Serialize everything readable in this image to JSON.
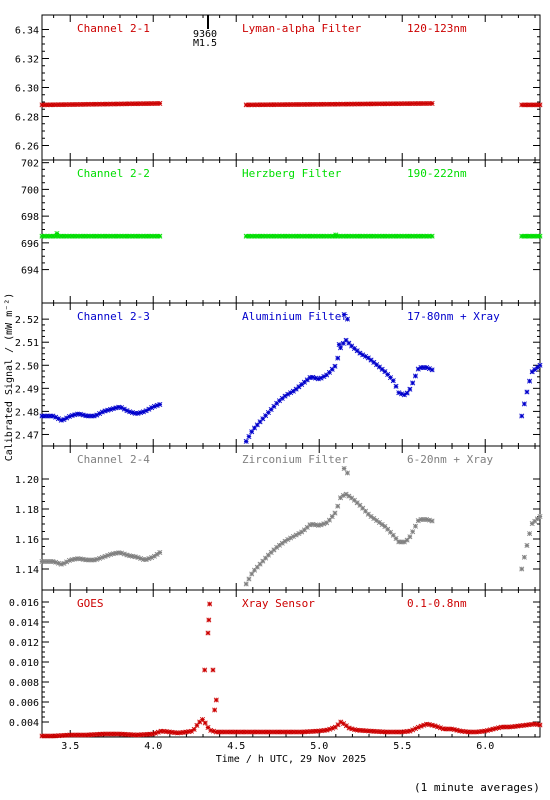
{
  "x_axis": {
    "label": "Time / h UTC, 29 Nov 2025",
    "range": [
      3.33,
      6.33
    ],
    "ticks": [
      3.5,
      4.0,
      4.5,
      5.0,
      5.5,
      6.0
    ],
    "tick_labels": [
      "3.5",
      "4.0",
      "4.5",
      "5.0",
      "5.5",
      "6.0"
    ]
  },
  "y_label": "Calibrated Signal / (mW m⁻²)",
  "footer_note": "(1 minute averages)",
  "flare_marker": {
    "x": 4.33,
    "label_1": "9360",
    "label_2": "M1.5"
  },
  "chart_data": [
    {
      "type": "scatter",
      "channel": "Channel 2-1",
      "filter": "Lyman-alpha Filter",
      "band": "120-123nm",
      "color": "#cc0000",
      "ylim": [
        6.25,
        6.35
      ],
      "ticks": [
        6.26,
        6.28,
        6.3,
        6.32,
        6.34
      ],
      "tick_labels": [
        "6.26",
        "6.28",
        "6.30",
        "6.32",
        "6.34"
      ],
      "series": [
        {
          "x": [
            3.33,
            4.04
          ],
          "y": [
            6.288,
            6.289
          ]
        },
        {
          "x": [
            4.56,
            5.68
          ],
          "y": [
            6.288,
            6.289
          ]
        },
        {
          "x": [
            6.22,
            6.33
          ],
          "y": [
            6.288,
            6.288
          ]
        }
      ]
    },
    {
      "type": "scatter",
      "channel": "Channel 2-2",
      "filter": "Herzberg Filter",
      "band": "190-222nm",
      "color": "#00dd00",
      "ylim": [
        691.5,
        702.2
      ],
      "ticks": [
        694,
        696,
        698,
        700,
        702
      ],
      "tick_labels": [
        "694",
        "696",
        "698",
        "700",
        "702"
      ],
      "series": [
        {
          "x": [
            3.33,
            4.04
          ],
          "y": [
            696.5,
            696.5
          ],
          "bumps": [
            [
              3.42,
              696.7
            ]
          ]
        },
        {
          "x": [
            4.56,
            5.68
          ],
          "y": [
            696.5,
            696.5
          ],
          "bumps": [
            [
              5.1,
              696.6
            ]
          ]
        },
        {
          "x": [
            6.22,
            6.33
          ],
          "y": [
            696.5,
            696.5
          ]
        }
      ]
    },
    {
      "type": "scatter",
      "channel": "Channel 2-3",
      "filter": "Aluminium Filter",
      "band": "17-80nm + Xray",
      "color": "#0000cc",
      "ylim": [
        2.465,
        2.527
      ],
      "ticks": [
        2.47,
        2.48,
        2.49,
        2.5,
        2.51,
        2.52
      ],
      "tick_labels": [
        "2.47",
        "2.48",
        "2.49",
        "2.50",
        "2.51",
        "2.52"
      ],
      "series": [
        {
          "x": [
            3.33,
            3.4,
            3.45,
            3.5,
            3.55,
            3.6,
            3.65,
            3.7,
            3.75,
            3.8,
            3.85,
            3.9,
            3.95,
            4.0,
            4.04
          ],
          "y": [
            2.478,
            2.478,
            2.476,
            2.478,
            2.479,
            2.478,
            2.478,
            2.48,
            2.481,
            2.482,
            2.48,
            2.479,
            2.48,
            2.482,
            2.483
          ]
        },
        {
          "x": [
            4.56,
            4.6,
            4.65,
            4.7,
            4.75,
            4.8,
            4.85,
            4.9,
            4.95,
            5.0,
            5.05,
            5.1,
            5.13,
            5.16,
            5.2,
            5.25,
            5.3,
            5.35,
            5.4,
            5.45,
            5.48,
            5.52,
            5.55,
            5.6,
            5.65,
            5.68
          ],
          "y": [
            2.467,
            2.472,
            2.476,
            2.48,
            2.484,
            2.487,
            2.489,
            2.492,
            2.495,
            2.494,
            2.496,
            2.5,
            2.508,
            2.511,
            2.508,
            2.505,
            2.503,
            2.5,
            2.497,
            2.493,
            2.488,
            2.487,
            2.49,
            2.499,
            2.499,
            2.498
          ]
        },
        {
          "x": [
            6.22,
            6.25,
            6.28,
            6.33
          ],
          "y": [
            2.478,
            2.488,
            2.497,
            2.5
          ]
        }
      ],
      "spikes": [
        {
          "x": 5.15,
          "y": 2.522
        },
        {
          "x": 5.17,
          "y": 2.52
        },
        {
          "x": 5.12,
          "y": 2.509
        }
      ]
    },
    {
      "type": "scatter",
      "channel": "Channel 2-4",
      "filter": "Zirconium Filter",
      "band": "6-20nm + Xray",
      "color": "#808080",
      "ylim": [
        1.126,
        1.222
      ],
      "ticks": [
        1.14,
        1.16,
        1.18,
        1.2
      ],
      "tick_labels": [
        "1.14",
        "1.16",
        "1.18",
        "1.20"
      ],
      "series": [
        {
          "x": [
            3.33,
            3.4,
            3.45,
            3.5,
            3.55,
            3.6,
            3.65,
            3.7,
            3.75,
            3.8,
            3.85,
            3.9,
            3.95,
            4.0,
            4.04
          ],
          "y": [
            1.145,
            1.145,
            1.143,
            1.146,
            1.147,
            1.146,
            1.146,
            1.148,
            1.15,
            1.151,
            1.149,
            1.148,
            1.146,
            1.148,
            1.151
          ]
        },
        {
          "x": [
            4.56,
            4.6,
            4.65,
            4.7,
            4.75,
            4.8,
            4.85,
            4.9,
            4.95,
            5.0,
            5.05,
            5.1,
            5.13,
            5.16,
            5.2,
            5.25,
            5.3,
            5.35,
            5.4,
            5.45,
            5.48,
            5.52,
            5.55,
            5.6,
            5.65,
            5.68
          ],
          "y": [
            1.13,
            1.138,
            1.144,
            1.15,
            1.155,
            1.159,
            1.162,
            1.165,
            1.17,
            1.169,
            1.171,
            1.178,
            1.188,
            1.19,
            1.187,
            1.182,
            1.176,
            1.172,
            1.168,
            1.162,
            1.158,
            1.158,
            1.162,
            1.173,
            1.173,
            1.172
          ]
        },
        {
          "x": [
            6.22,
            6.25,
            6.28,
            6.33
          ],
          "y": [
            1.14,
            1.155,
            1.17,
            1.175
          ]
        }
      ],
      "spikes": [
        {
          "x": 5.15,
          "y": 1.207
        },
        {
          "x": 5.17,
          "y": 1.204
        }
      ]
    },
    {
      "type": "scatter",
      "channel": "GOES",
      "filter": "Xray Sensor",
      "band": "0.1-0.8nm",
      "color": "#cc0000",
      "ylim": [
        0.0025,
        0.0172
      ],
      "ticks": [
        0.004,
        0.006,
        0.008,
        0.01,
        0.012,
        0.014,
        0.016
      ],
      "tick_labels": [
        "0.004",
        "0.006",
        "0.008",
        "0.010",
        "0.012",
        "0.014",
        "0.016"
      ],
      "series": [
        {
          "x": [
            3.33,
            3.4,
            3.5,
            3.6,
            3.7,
            3.8,
            3.9,
            4.0,
            4.05,
            4.1,
            4.15,
            4.2,
            4.24,
            4.26,
            4.28,
            4.3,
            4.32,
            4.34,
            4.36,
            4.38,
            4.4,
            4.45,
            4.5,
            4.6,
            4.7,
            4.8,
            4.9,
            5.0,
            5.05,
            5.1,
            5.13,
            5.15,
            5.18,
            5.22,
            5.3,
            5.4,
            5.5,
            5.55,
            5.6,
            5.65,
            5.7,
            5.75,
            5.8,
            5.85,
            5.9,
            5.95,
            6.0,
            6.05,
            6.1,
            6.15,
            6.2,
            6.25,
            6.3,
            6.33
          ],
          "y": [
            0.0026,
            0.0026,
            0.0027,
            0.0027,
            0.0028,
            0.0028,
            0.0027,
            0.0028,
            0.0031,
            0.003,
            0.0029,
            0.003,
            0.0031,
            0.0036,
            0.004,
            0.0043,
            0.0037,
            0.0032,
            0.0031,
            0.003,
            0.003,
            0.003,
            0.003,
            0.003,
            0.003,
            0.003,
            0.003,
            0.0031,
            0.0032,
            0.0035,
            0.004,
            0.0038,
            0.0034,
            0.0032,
            0.0031,
            0.003,
            0.003,
            0.0031,
            0.0035,
            0.0038,
            0.0036,
            0.0033,
            0.0033,
            0.0031,
            0.003,
            0.003,
            0.0031,
            0.0033,
            0.0035,
            0.0035,
            0.0036,
            0.0037,
            0.0038,
            0.0037
          ]
        }
      ],
      "spikes": [
        {
          "x": 4.34,
          "y": 0.0158
        },
        {
          "x": 4.335,
          "y": 0.0142
        },
        {
          "x": 4.33,
          "y": 0.0129
        },
        {
          "x": 4.31,
          "y": 0.0092
        },
        {
          "x": 4.36,
          "y": 0.0092
        },
        {
          "x": 4.38,
          "y": 0.0062
        },
        {
          "x": 4.37,
          "y": 0.0052
        }
      ]
    }
  ]
}
